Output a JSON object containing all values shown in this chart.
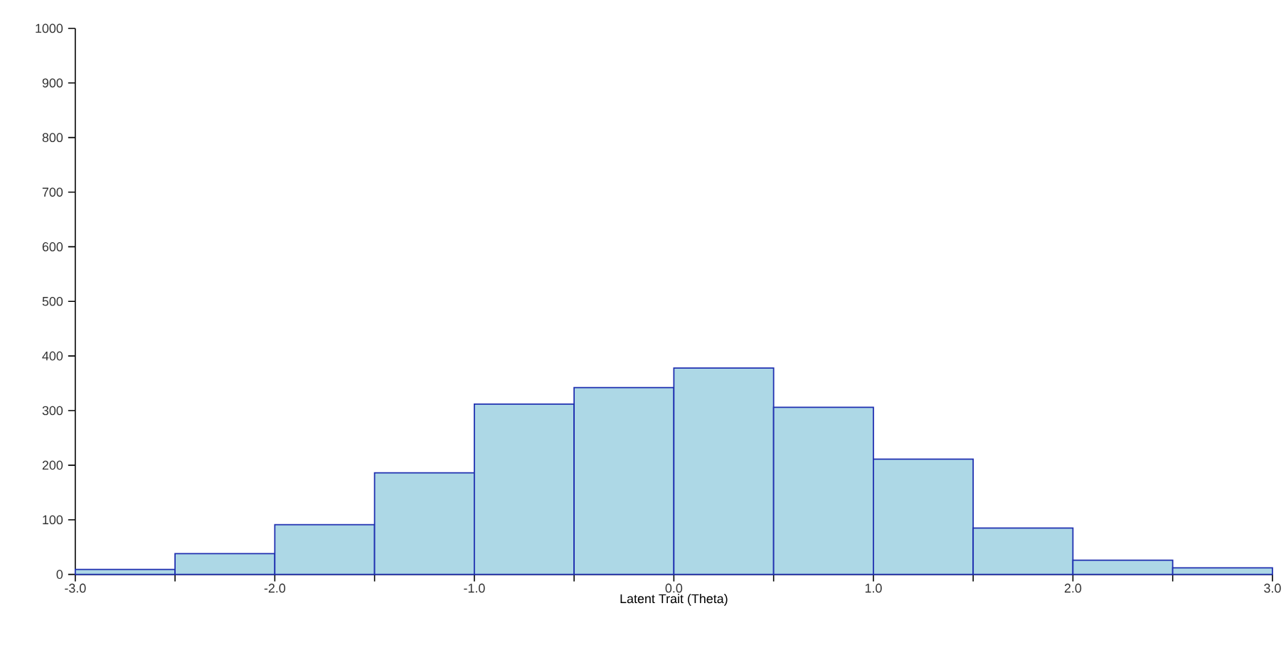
{
  "chart_data": {
    "type": "histogram",
    "xlabel": "Latent Trait (Theta)",
    "bins": [
      -3.0,
      -2.5,
      -2.0,
      -1.5,
      -1.0,
      -0.5,
      0.0,
      0.5,
      1.0,
      1.5,
      2.0,
      2.5,
      3.0
    ],
    "values": [
      9,
      38,
      91,
      186,
      312,
      342,
      378,
      306,
      211,
      85,
      26,
      12
    ],
    "color": "#add8e6",
    "xlim": [
      -3.0,
      3.0
    ],
    "ylim": [
      0,
      1000
    ],
    "xticks": [
      {
        "value": -3.0,
        "label": "-3.0"
      },
      {
        "value": -2.5,
        "label": null
      },
      {
        "value": -2.0,
        "label": "-2.0"
      },
      {
        "value": -1.5,
        "label": null
      },
      {
        "value": -1.0,
        "label": "-1.0"
      },
      {
        "value": -0.5,
        "label": null
      },
      {
        "value": 0.0,
        "label": "0.0"
      },
      {
        "value": 0.5,
        "label": null
      },
      {
        "value": 1.0,
        "label": "1.0"
      },
      {
        "value": 1.5,
        "label": null
      },
      {
        "value": 2.0,
        "label": "2.0"
      },
      {
        "value": 2.5,
        "label": null
      },
      {
        "value": 3.0,
        "label": "3.0"
      }
    ],
    "yticks": [
      0,
      100,
      200,
      300,
      400,
      500,
      600,
      700,
      800,
      900,
      1000
    ],
    "grid": false
  }
}
